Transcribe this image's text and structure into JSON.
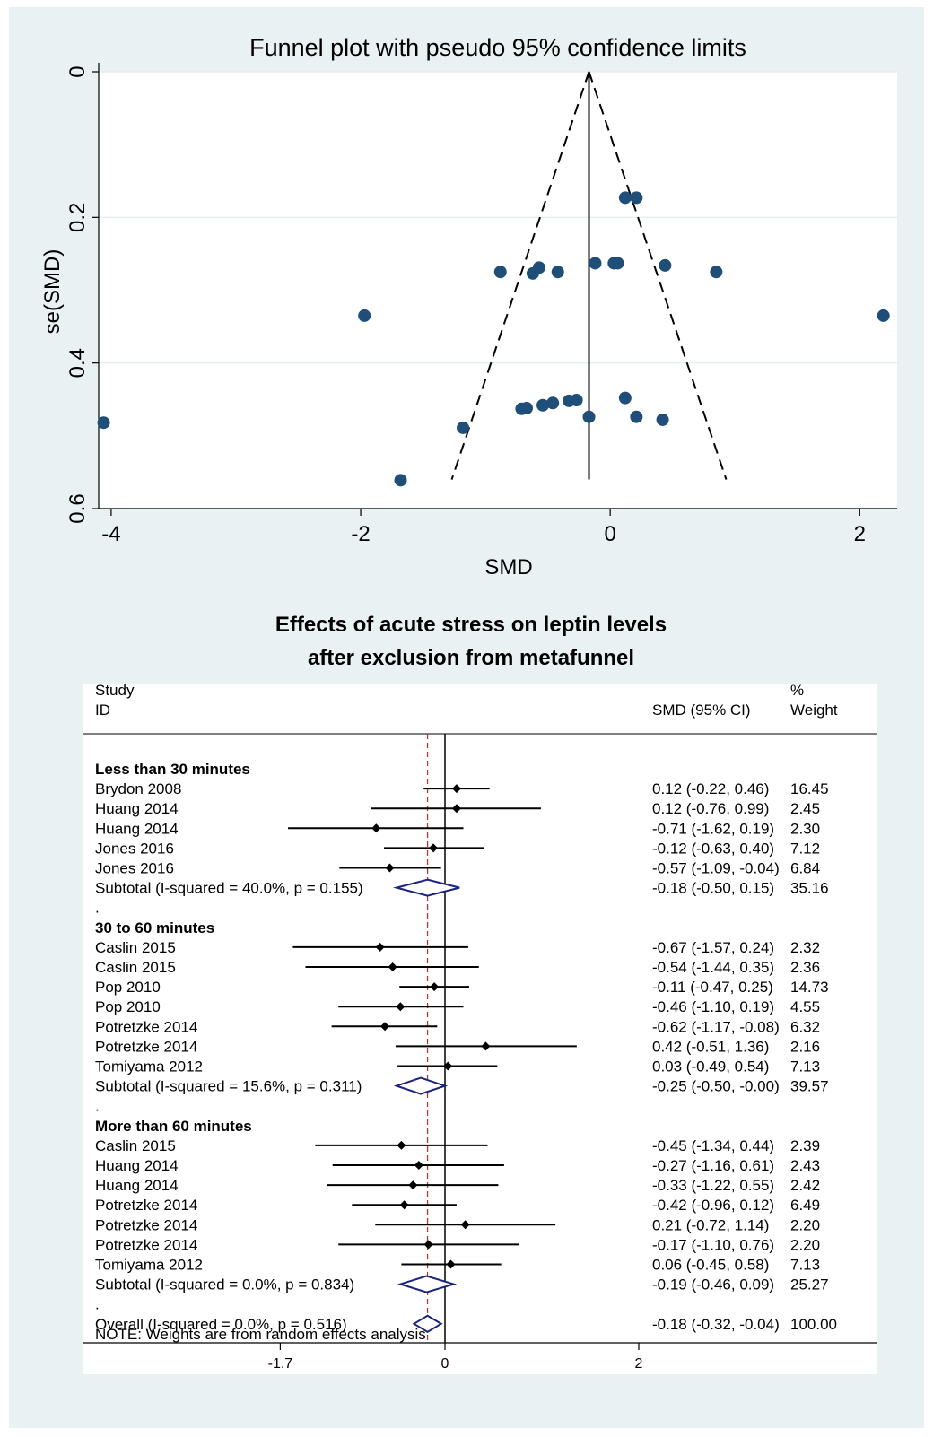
{
  "colors": {
    "frame_bg": "#eaf1f3",
    "funnel_point": "#1f4e79",
    "diamond_stroke": "#1a237e",
    "overall_line": "#b03a3a"
  },
  "chart_data": [
    {
      "type": "scatter",
      "title": "Funnel plot with pseudo 95% confidence limits",
      "xlabel": "SMD",
      "ylabel": "se(SMD)",
      "xlim": [
        -4.1,
        2.3
      ],
      "ylim": [
        0.6,
        0
      ],
      "y_reversed": true,
      "x_ticks": [
        "-4",
        "-2",
        "0",
        "2"
      ],
      "x_tick_values": [
        -4,
        -2,
        0,
        2
      ],
      "y_ticks": [
        "0",
        "0.2",
        "0.4",
        "0.6"
      ],
      "y_tick_values": [
        0,
        0.2,
        0.4,
        0.6
      ],
      "grid": true,
      "center_line": {
        "x": -0.17,
        "se_top": 0,
        "se_bottom": 0.56
      },
      "pseudo_ci_lines": [
        {
          "from": [
            -0.17,
            0
          ],
          "to": [
            -1.27,
            0.56
          ]
        },
        {
          "from": [
            -0.17,
            0
          ],
          "to": [
            0.93,
            0.56
          ]
        }
      ],
      "points": [
        {
          "x": 0.12,
          "y": 0.173
        },
        {
          "x": 0.21,
          "y": 0.173
        },
        {
          "x": -0.88,
          "y": 0.275
        },
        {
          "x": -0.62,
          "y": 0.277
        },
        {
          "x": -0.57,
          "y": 0.269
        },
        {
          "x": -0.42,
          "y": 0.275
        },
        {
          "x": -0.12,
          "y": 0.263
        },
        {
          "x": 0.03,
          "y": 0.263
        },
        {
          "x": 0.06,
          "y": 0.263
        },
        {
          "x": 0.44,
          "y": 0.266
        },
        {
          "x": 0.85,
          "y": 0.275
        },
        {
          "x": -1.97,
          "y": 0.335
        },
        {
          "x": 2.19,
          "y": 0.335
        },
        {
          "x": -4.06,
          "y": 0.482
        },
        {
          "x": -1.18,
          "y": 0.489
        },
        {
          "x": -0.71,
          "y": 0.463
        },
        {
          "x": -0.67,
          "y": 0.462
        },
        {
          "x": -0.54,
          "y": 0.458
        },
        {
          "x": -0.46,
          "y": 0.455
        },
        {
          "x": -0.33,
          "y": 0.452
        },
        {
          "x": -0.27,
          "y": 0.451
        },
        {
          "x": -0.17,
          "y": 0.474
        },
        {
          "x": 0.12,
          "y": 0.448
        },
        {
          "x": 0.21,
          "y": 0.474
        },
        {
          "x": 0.42,
          "y": 0.478
        },
        {
          "x": -1.68,
          "y": 0.561
        }
      ]
    },
    {
      "type": "forest",
      "title_lines": [
        "Effects of acute stress on leptin levels",
        "after exclusion from metafunnel"
      ],
      "header": {
        "study": "Study",
        "id": "ID",
        "ci": "SMD (95% CI)",
        "weight_pct": "%",
        "weight": "Weight"
      },
      "x_ticks": [
        "-1.7",
        "0",
        "2"
      ],
      "x_tick_values": [
        -1.7,
        0,
        2
      ],
      "xlim": [
        -3.7,
        4.2
      ],
      "overall_effect": -0.18,
      "note": "NOTE: Weights are from random effects analysis",
      "rows": [
        {
          "kind": "group",
          "label": "Less than 30 minutes"
        },
        {
          "kind": "study",
          "label": "Brydon 2008",
          "es": 0.12,
          "lo": -0.22,
          "hi": 0.46,
          "ci_text": "0.12 (-0.22, 0.46)",
          "weight": "16.45"
        },
        {
          "kind": "study",
          "label": "Huang 2014",
          "es": 0.12,
          "lo": -0.76,
          "hi": 0.99,
          "ci_text": "0.12 (-0.76, 0.99)",
          "weight": "2.45"
        },
        {
          "kind": "study",
          "label": "Huang 2014",
          "es": -0.71,
          "lo": -1.62,
          "hi": 0.19,
          "ci_text": "-0.71 (-1.62, 0.19)",
          "weight": "2.30"
        },
        {
          "kind": "study",
          "label": "Jones 2016",
          "es": -0.12,
          "lo": -0.63,
          "hi": 0.4,
          "ci_text": "-0.12 (-0.63, 0.40)",
          "weight": "7.12"
        },
        {
          "kind": "study",
          "label": "Jones 2016",
          "es": -0.57,
          "lo": -1.09,
          "hi": -0.04,
          "ci_text": "-0.57 (-1.09, -0.04)",
          "weight": "6.84"
        },
        {
          "kind": "subtotal",
          "label": "Subtotal  (I-squared = 40.0%, p = 0.155)",
          "es": -0.18,
          "lo": -0.5,
          "hi": 0.15,
          "ci_text": "-0.18 (-0.50, 0.15)",
          "weight": "35.16"
        },
        {
          "kind": "dot",
          "label": "."
        },
        {
          "kind": "group",
          "label": "30 to 60 minutes"
        },
        {
          "kind": "study",
          "label": "Caslin 2015",
          "es": -0.67,
          "lo": -1.57,
          "hi": 0.24,
          "ci_text": "-0.67 (-1.57, 0.24)",
          "weight": "2.32"
        },
        {
          "kind": "study",
          "label": "Caslin 2015",
          "es": -0.54,
          "lo": -1.44,
          "hi": 0.35,
          "ci_text": "-0.54 (-1.44, 0.35)",
          "weight": "2.36"
        },
        {
          "kind": "study",
          "label": "Pop 2010",
          "es": -0.11,
          "lo": -0.47,
          "hi": 0.25,
          "ci_text": "-0.11 (-0.47, 0.25)",
          "weight": "14.73"
        },
        {
          "kind": "study",
          "label": "Pop 2010",
          "es": -0.46,
          "lo": -1.1,
          "hi": 0.19,
          "ci_text": "-0.46 (-1.10, 0.19)",
          "weight": "4.55"
        },
        {
          "kind": "study",
          "label": "Potretzke 2014",
          "es": -0.62,
          "lo": -1.17,
          "hi": -0.08,
          "ci_text": "-0.62 (-1.17, -0.08)",
          "weight": "6.32"
        },
        {
          "kind": "study",
          "label": "Potretzke 2014",
          "es": 0.42,
          "lo": -0.51,
          "hi": 1.36,
          "ci_text": "0.42 (-0.51, 1.36)",
          "weight": "2.16"
        },
        {
          "kind": "study",
          "label": "Tomiyama 2012",
          "es": 0.03,
          "lo": -0.49,
          "hi": 0.54,
          "ci_text": "0.03 (-0.49, 0.54)",
          "weight": "7.13"
        },
        {
          "kind": "subtotal",
          "label": "Subtotal  (I-squared = 15.6%, p = 0.311)",
          "es": -0.25,
          "lo": -0.5,
          "hi": -0.0,
          "ci_text": "-0.25 (-0.50, -0.00)",
          "weight": "39.57"
        },
        {
          "kind": "dot",
          "label": "."
        },
        {
          "kind": "group",
          "label": "More than 60 minutes"
        },
        {
          "kind": "study",
          "label": "Caslin 2015",
          "es": -0.45,
          "lo": -1.34,
          "hi": 0.44,
          "ci_text": "-0.45 (-1.34, 0.44)",
          "weight": "2.39"
        },
        {
          "kind": "study",
          "label": "Huang 2014",
          "es": -0.27,
          "lo": -1.16,
          "hi": 0.61,
          "ci_text": "-0.27 (-1.16, 0.61)",
          "weight": "2.43"
        },
        {
          "kind": "study",
          "label": "Huang 2014",
          "es": -0.33,
          "lo": -1.22,
          "hi": 0.55,
          "ci_text": "-0.33 (-1.22, 0.55)",
          "weight": "2.42"
        },
        {
          "kind": "study",
          "label": "Potretzke 2014",
          "es": -0.42,
          "lo": -0.96,
          "hi": 0.12,
          "ci_text": "-0.42 (-0.96, 0.12)",
          "weight": "6.49"
        },
        {
          "kind": "study",
          "label": "Potretzke 2014",
          "es": 0.21,
          "lo": -0.72,
          "hi": 1.14,
          "ci_text": "0.21 (-0.72, 1.14)",
          "weight": "2.20"
        },
        {
          "kind": "study",
          "label": "Potretzke 2014",
          "es": -0.17,
          "lo": -1.1,
          "hi": 0.76,
          "ci_text": "-0.17 (-1.10, 0.76)",
          "weight": "2.20"
        },
        {
          "kind": "study",
          "label": "Tomiyama 2012",
          "es": 0.06,
          "lo": -0.45,
          "hi": 0.58,
          "ci_text": "0.06 (-0.45, 0.58)",
          "weight": "7.13"
        },
        {
          "kind": "subtotal",
          "label": "Subtotal  (I-squared = 0.0%, p = 0.834)",
          "es": -0.19,
          "lo": -0.46,
          "hi": 0.09,
          "ci_text": "-0.19 (-0.46, 0.09)",
          "weight": "25.27"
        },
        {
          "kind": "dot",
          "label": "."
        },
        {
          "kind": "overall",
          "label": "Overall  (I-squared = 0.0%, p = 0.516)",
          "es": -0.18,
          "lo": -0.32,
          "hi": -0.04,
          "ci_text": "-0.18 (-0.32, -0.04)",
          "weight": "100.00"
        }
      ]
    }
  ]
}
